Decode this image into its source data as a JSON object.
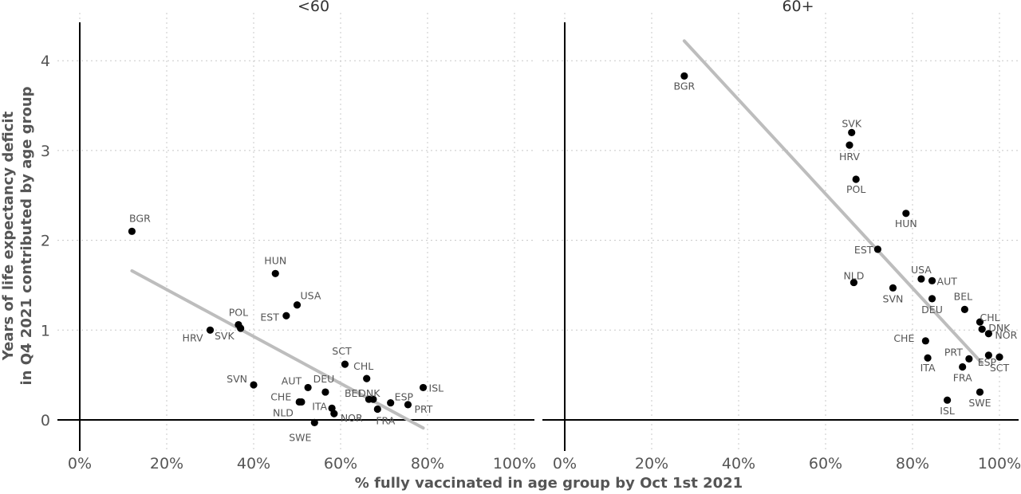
{
  "chart_data": {
    "type": "scatter",
    "xlabel": "% fully vaccinated in age group by Oct 1st 2021",
    "ylabel_line1": "Years of life expectancy deficit",
    "ylabel_line2": "in Q4 2021 contributed by age group",
    "xlim": [
      0,
      1.05
    ],
    "ylim": [
      -0.1,
      4.4
    ],
    "x_ticks": [
      0,
      0.2,
      0.4,
      0.6,
      0.8,
      1.0
    ],
    "x_tick_labels": [
      "0%",
      "20%",
      "40%",
      "60%",
      "80%",
      "100%"
    ],
    "y_ticks": [
      0,
      1,
      2,
      3,
      4
    ],
    "y_tick_labels": [
      "0",
      "1",
      "2",
      "3",
      "4"
    ],
    "grid": true,
    "trend_color": "#bdbdbd",
    "point_color": "#000000",
    "panels": [
      {
        "title": "<60",
        "trend": [
          [
            0.12,
            1.66
          ],
          [
            0.79,
            -0.09
          ]
        ],
        "points": [
          {
            "label": "BGR",
            "x": 0.12,
            "y": 2.1
          },
          {
            "label": "HUN",
            "x": 0.45,
            "y": 1.63
          },
          {
            "label": "USA",
            "x": 0.5,
            "y": 1.28
          },
          {
            "label": "EST",
            "x": 0.475,
            "y": 1.16
          },
          {
            "label": "POL",
            "x": 0.365,
            "y": 1.06
          },
          {
            "label": "HRV",
            "x": 0.3,
            "y": 1.0
          },
          {
            "label": "SVK",
            "x": 0.37,
            "y": 1.02
          },
          {
            "label": "SCT",
            "x": 0.61,
            "y": 0.62
          },
          {
            "label": "CHL",
            "x": 0.66,
            "y": 0.46
          },
          {
            "label": "SVN",
            "x": 0.4,
            "y": 0.39
          },
          {
            "label": "AUT",
            "x": 0.525,
            "y": 0.36
          },
          {
            "label": "DEU",
            "x": 0.565,
            "y": 0.31
          },
          {
            "label": "ISL",
            "x": 0.79,
            "y": 0.36
          },
          {
            "label": "BEL",
            "x": 0.665,
            "y": 0.23
          },
          {
            "label": "DNK",
            "x": 0.675,
            "y": 0.23
          },
          {
            "label": "ESP",
            "x": 0.715,
            "y": 0.19
          },
          {
            "label": "CHE",
            "x": 0.505,
            "y": 0.2
          },
          {
            "label": "NLD",
            "x": 0.51,
            "y": 0.2
          },
          {
            "label": "ITA",
            "x": 0.58,
            "y": 0.13
          },
          {
            "label": "NOR",
            "x": 0.585,
            "y": 0.07
          },
          {
            "label": "PRT",
            "x": 0.755,
            "y": 0.17
          },
          {
            "label": "FRA",
            "x": 0.685,
            "y": 0.12
          },
          {
            "label": "SWE",
            "x": 0.54,
            "y": -0.03
          }
        ]
      },
      {
        "title": "60+",
        "trend": [
          [
            0.275,
            4.22
          ],
          [
            0.96,
            0.63
          ]
        ],
        "points": [
          {
            "label": "BGR",
            "x": 0.275,
            "y": 3.83
          },
          {
            "label": "SVK",
            "x": 0.66,
            "y": 3.2
          },
          {
            "label": "HRV",
            "x": 0.655,
            "y": 3.06
          },
          {
            "label": "POL",
            "x": 0.67,
            "y": 2.68
          },
          {
            "label": "HUN",
            "x": 0.785,
            "y": 2.3
          },
          {
            "label": "EST",
            "x": 0.72,
            "y": 1.9
          },
          {
            "label": "NLD",
            "x": 0.665,
            "y": 1.53
          },
          {
            "label": "USA",
            "x": 0.82,
            "y": 1.57
          },
          {
            "label": "AUT",
            "x": 0.845,
            "y": 1.55
          },
          {
            "label": "SVN",
            "x": 0.755,
            "y": 1.47
          },
          {
            "label": "DEU",
            "x": 0.845,
            "y": 1.35
          },
          {
            "label": "BEL",
            "x": 0.92,
            "y": 1.23
          },
          {
            "label": "CHL",
            "x": 0.955,
            "y": 1.09
          },
          {
            "label": "DNK",
            "x": 0.96,
            "y": 1.01
          },
          {
            "label": "NOR",
            "x": 0.975,
            "y": 0.96
          },
          {
            "label": "CHE",
            "x": 0.83,
            "y": 0.88
          },
          {
            "label": "ITA",
            "x": 0.835,
            "y": 0.69
          },
          {
            "label": "PRT",
            "x": 0.93,
            "y": 0.68
          },
          {
            "label": "ESP",
            "x": 0.975,
            "y": 0.72
          },
          {
            "label": "SCT",
            "x": 1.0,
            "y": 0.7
          },
          {
            "label": "FRA",
            "x": 0.915,
            "y": 0.59
          },
          {
            "label": "SWE",
            "x": 0.955,
            "y": 0.31
          },
          {
            "label": "ISL",
            "x": 0.88,
            "y": 0.22
          }
        ]
      }
    ]
  }
}
